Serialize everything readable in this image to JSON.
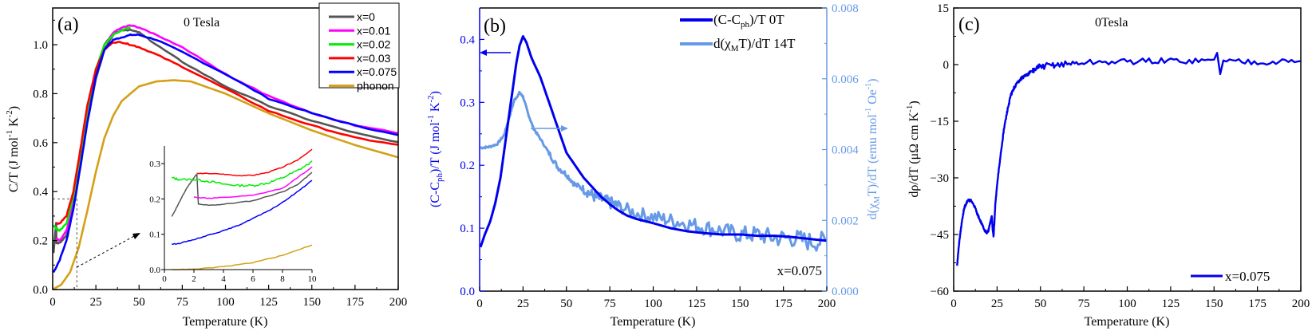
{
  "chart_data": [
    {
      "panel": "(a)",
      "type": "line",
      "title": "0 Tesla",
      "xlabel": "Temperature (K)",
      "ylabel": "C/T (J mol-1 K-2)",
      "xlim": [
        0,
        200
      ],
      "ylim": [
        0,
        1.15
      ],
      "xticks": [
        "0",
        "25",
        "50",
        "75",
        "100",
        "125",
        "150",
        "175",
        "200"
      ],
      "yticks": [
        "0.0",
        "0.2",
        "0.4",
        "0.6",
        "0.8",
        "1.0"
      ],
      "legend_position": "upper right",
      "series": [
        {
          "name": "x=0",
          "color": "#555555",
          "x": [
            0.5,
            2,
            2.2,
            4,
            8,
            12,
            16,
            20,
            25,
            30,
            35,
            40,
            45,
            50,
            60,
            75,
            100,
            125,
            150,
            175,
            200
          ],
          "y": [
            0.15,
            0.27,
            0.19,
            0.19,
            0.22,
            0.33,
            0.5,
            0.68,
            0.86,
            0.98,
            1.04,
            1.06,
            1.06,
            1.05,
            1.0,
            0.93,
            0.83,
            0.75,
            0.69,
            0.64,
            0.6
          ]
        },
        {
          "name": "x=0.01",
          "color": "#ff00ff",
          "x": [
            2,
            4,
            8,
            12,
            16,
            20,
            25,
            30,
            35,
            40,
            45,
            50,
            60,
            75,
            100,
            125,
            150,
            175,
            200
          ],
          "y": [
            0.21,
            0.2,
            0.24,
            0.35,
            0.52,
            0.7,
            0.88,
            1.0,
            1.05,
            1.07,
            1.08,
            1.07,
            1.04,
            0.99,
            0.88,
            0.79,
            0.72,
            0.67,
            0.64
          ]
        },
        {
          "name": "x=0.02",
          "color": "#00ee00",
          "x": [
            0.5,
            2,
            4,
            8,
            12,
            16,
            20,
            25,
            30,
            35,
            40,
            45
          ],
          "y": [
            0.26,
            0.25,
            0.24,
            0.27,
            0.38,
            0.55,
            0.73,
            0.9,
            1.0,
            1.04,
            1.06,
            1.07
          ]
        },
        {
          "name": "x=0.03",
          "color": "#ff0000",
          "x": [
            2,
            4,
            8,
            12,
            16,
            20,
            25,
            30,
            35,
            40,
            45,
            50,
            60,
            75,
            100,
            125,
            150,
            175,
            200
          ],
          "y": [
            0.27,
            0.27,
            0.3,
            0.4,
            0.57,
            0.75,
            0.9,
            0.98,
            1.01,
            1.01,
            1.0,
            0.99,
            0.96,
            0.91,
            0.82,
            0.73,
            0.67,
            0.62,
            0.59
          ]
        },
        {
          "name": "x=0.075",
          "color": "#0000ff",
          "x": [
            0.5,
            4,
            8,
            12,
            16,
            20,
            25,
            30,
            35,
            40,
            45,
            50,
            60,
            75,
            100,
            125,
            150,
            175,
            200
          ],
          "y": [
            0.07,
            0.12,
            0.2,
            0.33,
            0.5,
            0.68,
            0.87,
            0.98,
            1.02,
            1.03,
            1.04,
            1.04,
            1.02,
            0.97,
            0.88,
            0.78,
            0.72,
            0.67,
            0.63
          ]
        },
        {
          "name": "phonon",
          "color": "#d4a017",
          "x": [
            0,
            5,
            10,
            15,
            20,
            25,
            30,
            35,
            40,
            50,
            60,
            70,
            80,
            100,
            125,
            150,
            175,
            200
          ],
          "y": [
            0,
            0.02,
            0.07,
            0.17,
            0.32,
            0.48,
            0.62,
            0.71,
            0.77,
            0.83,
            0.85,
            0.855,
            0.85,
            0.8,
            0.72,
            0.65,
            0.59,
            0.54
          ]
        }
      ],
      "inset": {
        "xlim": [
          0,
          10
        ],
        "ylim": [
          0,
          0.35
        ],
        "xticks": [
          "0",
          "2",
          "4",
          "6",
          "8",
          "10"
        ],
        "yticks": [
          "0.0",
          "0.1",
          "0.2",
          "0.3"
        ],
        "series": [
          {
            "name": "x=0",
            "x": [
              0.5,
              1,
              1.5,
              2,
              2.2,
              2.3,
              3,
              4,
              6,
              8,
              9,
              10
            ],
            "y": [
              0.15,
              0.19,
              0.23,
              0.26,
              0.27,
              0.185,
              0.182,
              0.185,
              0.195,
              0.22,
              0.24,
              0.275
            ]
          },
          {
            "name": "x=0.01",
            "x": [
              2,
              3,
              4,
              6,
              8,
              10
            ],
            "y": [
              0.205,
              0.202,
              0.204,
              0.21,
              0.23,
              0.29
            ]
          },
          {
            "name": "x=0.02",
            "x": [
              0.5,
              1,
              2,
              3,
              4,
              5,
              6,
              7,
              8,
              9,
              10
            ],
            "y": [
              0.26,
              0.255,
              0.255,
              0.25,
              0.242,
              0.238,
              0.238,
              0.245,
              0.26,
              0.28,
              0.305
            ]
          },
          {
            "name": "x=0.03",
            "x": [
              2.2,
              3,
              4,
              5,
              6,
              7,
              8,
              9,
              10
            ],
            "y": [
              0.272,
              0.272,
              0.27,
              0.266,
              0.267,
              0.275,
              0.29,
              0.31,
              0.34
            ]
          },
          {
            "name": "x=0.075",
            "x": [
              0.5,
              1,
              2,
              3,
              4,
              5,
              6,
              7,
              8,
              9,
              10
            ],
            "y": [
              0.072,
              0.074,
              0.085,
              0.098,
              0.11,
              0.125,
              0.145,
              0.165,
              0.19,
              0.22,
              0.253
            ]
          },
          {
            "name": "phonon",
            "x": [
              0.5,
              2,
              4,
              6,
              8,
              10
            ],
            "y": [
              0,
              0.001,
              0.008,
              0.02,
              0.04,
              0.07
            ]
          }
        ]
      }
    },
    {
      "panel": "(b)",
      "type": "line",
      "xlabel": "Temperature (K)",
      "ylabel": "(C-Cph)/T (J mol-1 K-2)",
      "ylabel_right": "d(χMT)/dT (emu mol-1 Oe-1)",
      "xlim": [
        0,
        200
      ],
      "ylim": [
        0,
        0.45
      ],
      "ylim_right": [
        0,
        0.008
      ],
      "xticks": [
        "0",
        "25",
        "50",
        "75",
        "100",
        "125",
        "150",
        "175",
        "200"
      ],
      "yticks": [
        "0.0",
        "0.1",
        "0.2",
        "0.3",
        "0.4"
      ],
      "yticks_right": [
        "0.000",
        "0.002",
        "0.004",
        "0.006",
        "0.008"
      ],
      "annotation": "x=0.075",
      "legend_position": "upper right",
      "series": [
        {
          "name": "(C-Cph)/T  0T",
          "axis": "left",
          "color": "#0000ee",
          "x": [
            0.5,
            3,
            6,
            9,
            12,
            15,
            18,
            21,
            23,
            25,
            27,
            30,
            35,
            40,
            45,
            50,
            55,
            60,
            65,
            70,
            75,
            80,
            85,
            90,
            100,
            110,
            120,
            130,
            140,
            150,
            160,
            170,
            180,
            190,
            200
          ],
          "y": [
            0.07,
            0.09,
            0.11,
            0.14,
            0.18,
            0.24,
            0.3,
            0.36,
            0.39,
            0.405,
            0.395,
            0.37,
            0.34,
            0.3,
            0.26,
            0.22,
            0.2,
            0.18,
            0.165,
            0.15,
            0.138,
            0.128,
            0.12,
            0.115,
            0.108,
            0.1,
            0.095,
            0.092,
            0.09,
            0.09,
            0.088,
            0.088,
            0.086,
            0.083,
            0.08
          ]
        },
        {
          "name": "d(χMT)/dT 14T",
          "axis": "right",
          "color": "#6699e6",
          "x": [
            0.5,
            5,
            10,
            14,
            17,
            20,
            23,
            25,
            28,
            31,
            35,
            40,
            45,
            50,
            55,
            60,
            65,
            70,
            75,
            80,
            90,
            100,
            110,
            120,
            130,
            140,
            150,
            160,
            170,
            180,
            190,
            200
          ],
          "y": [
            0.00405,
            0.00407,
            0.00415,
            0.0044,
            0.0049,
            0.0054,
            0.0056,
            0.0055,
            0.005,
            0.0046,
            0.0043,
            0.0039,
            0.0035,
            0.0033,
            0.003,
            0.0029,
            0.0027,
            0.0026,
            0.0025,
            0.0024,
            0.0022,
            0.0021,
            0.002,
            0.0019,
            0.0018,
            0.0017,
            0.0016,
            0.0016,
            0.0015,
            0.0015,
            0.0014,
            0.0014
          ]
        }
      ]
    },
    {
      "panel": "(c)",
      "type": "line",
      "title": "0Tesla",
      "xlabel": "Temperature (K)",
      "ylabel": "dρ/dT (μΩ cm K-1)",
      "xlim": [
        0,
        200
      ],
      "ylim": [
        -60,
        15
      ],
      "xticks": [
        "0",
        "25",
        "50",
        "75",
        "100",
        "125",
        "150",
        "175",
        "200"
      ],
      "yticks": [
        "-60",
        "-45",
        "-30",
        "-15",
        "0",
        "15"
      ],
      "legend_position": "lower right",
      "series": [
        {
          "name": "x=0.075",
          "color": "#0000ee",
          "x": [
            2,
            3,
            4,
            5,
            6,
            7,
            8,
            10,
            12,
            14,
            16,
            18,
            19,
            20,
            21,
            22,
            22.5,
            23,
            24,
            25,
            27,
            29,
            31,
            33,
            35,
            38,
            41,
            45,
            50,
            60,
            75,
            100,
            125,
            150,
            175,
            200
          ],
          "y": [
            -53,
            -48,
            -44,
            -41,
            -38,
            -37,
            -36,
            -36,
            -37.5,
            -40,
            -42,
            -44,
            -44.5,
            -44,
            -42,
            -40,
            -44,
            -45.5,
            -37,
            -32,
            -24,
            -17,
            -12,
            -8,
            -6,
            -4,
            -3,
            -1.8,
            -0.5,
            0,
            0.5,
            0.8,
            1,
            1,
            0.8,
            0.8
          ]
        }
      ]
    }
  ],
  "panels": {
    "a": {
      "label": "(a)",
      "title": "0 Tesla",
      "xlabel": "Temperature (K)",
      "ylabel_main": "C/T (J mol",
      "ylabel_sup1": "-1",
      "ylabel_mid": " K",
      "ylabel_sup2": "-2",
      "ylabel_end": ")",
      "legend": [
        "x=0",
        "x=0.01",
        "x=0.02",
        "x=0.03",
        "x=0.075",
        "phonon"
      ]
    },
    "b": {
      "label": "(b)",
      "annotation": "x=0.075",
      "xlabel": "Temperature (K)",
      "legend_1_pre": "(C-C",
      "legend_1_sub": "ph",
      "legend_1_post": ")/T  0T",
      "legend_2_pre": "d(χ",
      "legend_2_sub": "M",
      "legend_2_post": "T)/dT 14T",
      "ylabel_left_pre": "(C-C",
      "ylabel_left_sub": "ph",
      "ylabel_left_mid": ")/T (J mol",
      "ylabel_left_sup1": "-1",
      "ylabel_left_mid2": " K",
      "ylabel_left_sup2": "-2",
      "ylabel_left_end": ")",
      "ylabel_right_pre": "d(χ",
      "ylabel_right_sub": "M",
      "ylabel_right_mid": "T)/dT (emu mol",
      "ylabel_right_sup1": "-1",
      "ylabel_right_mid2": " Oe",
      "ylabel_right_sup2": "-1",
      "ylabel_right_end": ")"
    },
    "c": {
      "label": "(c)",
      "title": "0Tesla",
      "xlabel": "Temperature (K)",
      "ylabel_main": "dρ/dT (μΩ cm K",
      "ylabel_sup": "-1",
      "ylabel_end": ")",
      "legend": "x=0.075"
    }
  }
}
